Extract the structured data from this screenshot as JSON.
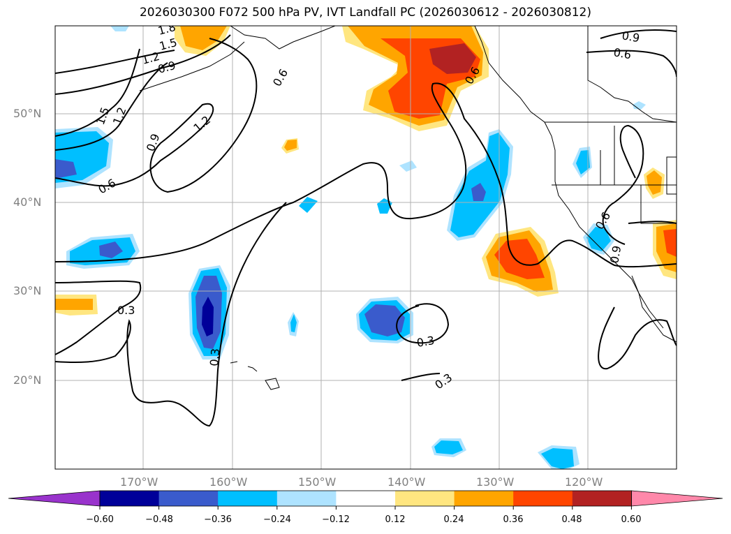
{
  "title": "2026030300 F072 500 hPa PV, IVT Landfall PC (2026030612 - 2026030812)",
  "map": {
    "lat_labels": [
      "50°N",
      "40°N",
      "30°N",
      "20°N"
    ],
    "lon_labels": [
      "170°W",
      "160°W",
      "150°W",
      "140°W",
      "130°W",
      "120°W"
    ]
  },
  "contour_labels": [
    "1.8",
    "1.5",
    "1.2",
    "0.9",
    "0.6",
    "1.5",
    "1.2",
    "1.2",
    "0.9",
    "0.6",
    "0.3",
    "0.3",
    "0.3",
    "0.3",
    "0.9",
    "0.6",
    "0.6",
    "0.9",
    "0.6"
  ],
  "colorbar": {
    "ticks": [
      "−0.60",
      "−0.48",
      "−0.36",
      "−0.24",
      "−0.12",
      "0.12",
      "0.24",
      "0.36",
      "0.48",
      "0.60"
    ],
    "colors": [
      "#9933cc",
      "#000099",
      "#3a5bcc",
      "#00bfff",
      "#aee3ff",
      "#ffffff",
      "#ffe680",
      "#ffa500",
      "#ff4500",
      "#b22222",
      "#ff88aa"
    ]
  }
}
